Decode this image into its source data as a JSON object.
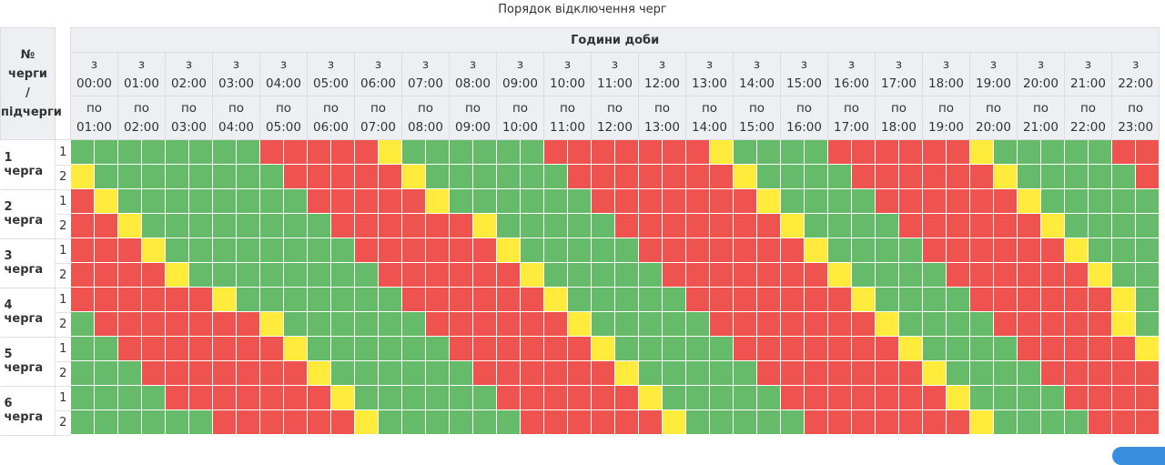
{
  "title": "Порядок відключення черг",
  "header": {
    "group_label": "Години доби",
    "corner_label_line1": "№ черги",
    "corner_label_line2": "/",
    "corner_label_line3": "підчерги",
    "from_prefix": "з",
    "to_prefix": "по",
    "hours": [
      "00:00",
      "01:00",
      "02:00",
      "03:00",
      "04:00",
      "05:00",
      "06:00",
      "07:00",
      "08:00",
      "09:00",
      "10:00",
      "11:00",
      "12:00",
      "13:00",
      "14:00",
      "15:00",
      "16:00",
      "17:00",
      "18:00",
      "19:00",
      "20:00",
      "21:00",
      "22:00"
    ],
    "hours_to": [
      "01:00",
      "02:00",
      "03:00",
      "04:00",
      "05:00",
      "06:00",
      "07:00",
      "08:00",
      "09:00",
      "10:00",
      "11:00",
      "12:00",
      "13:00",
      "14:00",
      "15:00",
      "16:00",
      "17:00",
      "18:00",
      "19:00",
      "20:00",
      "21:00",
      "22:00",
      "23:00"
    ]
  },
  "status_colors": {
    "G": "#66bb6a",
    "R": "#ef5350",
    "Y": "#ffeb3b"
  },
  "queues": [
    {
      "label": "1 черга",
      "subqueues": [
        {
          "label": "1",
          "cells": "GGGGGGGGRRRRRYGGGGGGRRRRRRRYGGGGRRRRRRYGGGGGRR"
        },
        {
          "label": "2",
          "cells": "YGGGGGGGGRRRRRYGGGGGGRRRRRRRYGGGGRRRRRRYGGGGGR"
        }
      ]
    },
    {
      "label": "2 черга",
      "subqueues": [
        {
          "label": "1",
          "cells": "RYGGGGGGGGRRRRRYGGGGGGRRRRRRRYGGGGRRRRRRYGGGGG"
        },
        {
          "label": "2",
          "cells": "RRYGGGGGGGGRRRRRRYGGGGGRRRRRRRYGGGGRRRRRRYGGGG"
        }
      ]
    },
    {
      "label": "3 черга",
      "subqueues": [
        {
          "label": "1",
          "cells": "RRRYGGGGGGGGRRRRRRYGGGGGRRRRRRRYGGGGRRRRRRYGGG"
        },
        {
          "label": "2",
          "cells": "RRRRYGGGGGGGGRRRRRRYGGGGGRRRRRRRYGGGGRRRRRRYGG"
        }
      ]
    },
    {
      "label": "4 черга",
      "subqueues": [
        {
          "label": "1",
          "cells": "RRRRRRYGGGGGGGRRRRRRYGGGGGRRRRRRRYGGGGRRRRRRYG"
        },
        {
          "label": "2",
          "cells": "GRRRRRRRYGGGGGGRRRRRRYGGGGGRRRRRRRYGGGGRRRRRYG"
        }
      ]
    },
    {
      "label": "5 черга",
      "subqueues": [
        {
          "label": "1",
          "cells": "GGRRRRRRRYGGGGGGRRRRRRYGGGGGRRRRRRRYGGGGRRRRRY"
        },
        {
          "label": "2",
          "cells": "GGGRRRRRRRYGGGGGGRRRRRRYGGGGGRRRRRRRYGGGGRRRRR"
        }
      ]
    },
    {
      "label": "6 черга",
      "subqueues": [
        {
          "label": "1",
          "cells": "GGGGRRRRRRRYGGGGGGRRRRRRYGGGGGRRRRRRRYGGGGRRRR"
        },
        {
          "label": "2",
          "cells": "GGGGGGRRRRRRYGGGGGGRRRRRRYGGGGGRRRRRRRYGGGGRRR"
        }
      ]
    }
  ]
}
